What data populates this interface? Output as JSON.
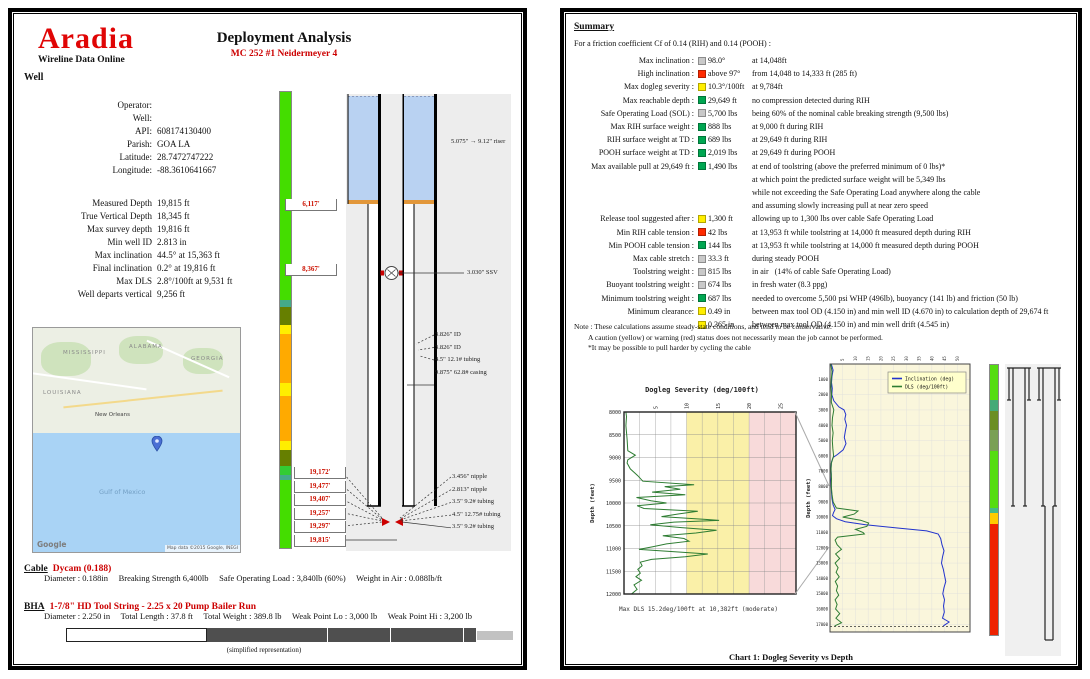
{
  "colors": {
    "accent_red": "#cc0000",
    "status_green": "#00a651",
    "status_yellow": "#ffee00",
    "status_red": "#ff2a00",
    "status_gray": "#c9c9c9"
  },
  "left_page": {
    "logo": {
      "title": "Aradia",
      "subtitle": "Wireline Data Online"
    },
    "title": "Deployment Analysis",
    "subtitle": "MC 252 #1 Neidermeyer 4",
    "well_section_label": "Well",
    "well_rows": [
      {
        "label": "Operator:",
        "value": ""
      },
      {
        "label": "Well:",
        "value": ""
      },
      {
        "label": "API:",
        "value": "608174130400"
      },
      {
        "label": "Parish:",
        "value": "GOA LA"
      },
      {
        "label": "Latitude:",
        "value": "28.7472747222"
      },
      {
        "label": "Longitude:",
        "value": "-88.3610641667"
      },
      {
        "label": "",
        "value": ""
      },
      {
        "label": "Measured Depth",
        "value": "19,815 ft"
      },
      {
        "label": "True Vertical Depth",
        "value": "18,345 ft"
      },
      {
        "label": "Max survey depth",
        "value": "19,816 ft"
      },
      {
        "label": "Min well ID",
        "value": "2.813 in"
      },
      {
        "label": "Max inclination",
        "value": "44.5° at 15,363 ft"
      },
      {
        "label": "Final inclination",
        "value": "0.2° at 19,816 ft"
      },
      {
        "label": "Max DLS",
        "value": "2.8°/100ft at 9,531 ft"
      },
      {
        "label": "Well departs vertical",
        "value": "9,256 ft"
      }
    ],
    "map": {
      "states": [
        "MISSISSIPPI",
        "ALABAMA",
        "GEORGIA",
        "LOUISIANA"
      ],
      "city": "New Orleans",
      "water_label": "Gulf of Mexico",
      "watermark": "Google",
      "attribution": "Map data ©2015 Google, INEGI"
    },
    "schematic": {
      "riser_label": "5.075\" → 9.12\" riser",
      "ssv_label": "3.030\" SSV",
      "upper_depth_boxes": [
        "6,117'",
        "8,367'"
      ],
      "mid_labels": [
        "3.826\" ID",
        "3.826\" ID",
        "4.5\" 12.1# tubing",
        "9.875\" 62.8# casing"
      ],
      "bottom_depth_boxes": [
        "19,172'",
        "19,477'",
        "19,407'",
        "19,257'",
        "19,297'",
        "19,815'"
      ],
      "bottom_labels": [
        "3.456\" nipple",
        "2.813\" nipple",
        "3.5\" 9.2# tubing",
        "4.5\" 12.75# tubing",
        "3.5\" 9.2# tubing"
      ],
      "colorbar": [
        {
          "color": "#44dd00",
          "h": 45.7
        },
        {
          "color": "#44aa88",
          "h": 1.5
        },
        {
          "color": "#667f00",
          "h": 4.0
        },
        {
          "color": "#ffee00",
          "h": 1.8
        },
        {
          "color": "#ffaa00",
          "h": 10.8
        },
        {
          "color": "#ffee00",
          "h": 2.9
        },
        {
          "color": "#ffaa00",
          "h": 9.9
        },
        {
          "color": "#ffee00",
          "h": 2.0
        },
        {
          "color": "#667f00",
          "h": 3.5
        },
        {
          "color": "#33cc33",
          "h": 2.0
        },
        {
          "color": "#44aa88",
          "h": 1.1
        },
        {
          "color": "#44dd00",
          "h": 14.8
        }
      ]
    },
    "cable": {
      "heading": "Cable",
      "name": "Dycam (0.188)",
      "details": "Diameter : 0.188in     Breaking Strength 6,400lb     Safe Operating Load : 3,840lb (60%)     Weight in Air : 0.088lb/ft"
    },
    "bha": {
      "heading": "BHA",
      "name": "1-7/8\" HD Tool String - 2.25 x 20 Pump Bailer Run",
      "details": "Diameter : 2.250 in     Total Length : 37.8 ft     Total Weight : 389.8 lb     Weak Point Lo : 3,000 lb     Weak Point Hi : 3,200 lb",
      "caption": "(simplified representation)",
      "segments": [
        {
          "w": 141,
          "style": "outline"
        },
        {
          "w": 120,
          "style": "dark"
        },
        {
          "w": 62,
          "style": "dark"
        },
        {
          "w": 72,
          "style": "dark"
        },
        {
          "w": 12,
          "style": "dark"
        },
        {
          "w": 36,
          "style": "light"
        }
      ]
    }
  },
  "right_page": {
    "heading": "Summary",
    "intro": "For a friction coefficient Cf of 0.14 (RIH) and 0.14 (POOH) :",
    "rows": [
      {
        "label": "Max inclination :",
        "chip": "gray",
        "value": "98.0°",
        "desc": "at 14,048ft"
      },
      {
        "label": "High inclination :",
        "chip": "red",
        "value": "above 97°",
        "desc": "from 14,048 to 14,333 ft (285 ft)"
      },
      {
        "label": "Max dogleg severity :",
        "chip": "yellow",
        "value": "10.3°/100ft",
        "desc": "at 9,784ft"
      },
      {
        "label": "Max reachable depth :",
        "chip": "green",
        "value": "29,649 ft",
        "desc": "no compression detected during RIH"
      },
      {
        "label": "Safe Operating Load (SOL) :",
        "chip": "gray",
        "value": "5,700 lbs",
        "desc": "being 60% of the nominal cable breaking strength (9,500 lbs)"
      },
      {
        "label": "Max RIH surface weight :",
        "chip": "green",
        "value": "888 lbs",
        "desc": "at 9,000 ft during RIH"
      },
      {
        "label": "RIH surface weight at TD :",
        "chip": "green",
        "value": "689 lbs",
        "desc": "at 29,649 ft during RIH"
      },
      {
        "label": "POOH surface weight at TD :",
        "chip": "green",
        "value": "2,019 lbs",
        "desc": "at 29,649 ft during POOH"
      },
      {
        "label": "Max available pull at 29,649 ft :",
        "chip": "green",
        "value": "1,490 lbs",
        "desc": "at end of toolstring (above the preferred minimum of 0 lbs)*",
        "extra": [
          "at which point the predicted surface weight will be 5,349 lbs",
          "while not exceeding the Safe Operating Load anywhere along the cable",
          "and assuming slowly increasing pull at near zero speed"
        ]
      },
      {
        "label": "Release tool suggested after :",
        "chip": "yellow",
        "value": "1,300 ft",
        "desc": "allowing up to 1,300 lbs over cable Safe Operating Load"
      },
      {
        "label": "Min RIH cable tension :",
        "chip": "red",
        "value": "42 lbs",
        "desc": "at 13,953 ft while toolstring at 14,000 ft measured depth during RIH"
      },
      {
        "label": "Min POOH cable tension :",
        "chip": "green",
        "value": "144 lbs",
        "desc": "at 13,953 ft while toolstring at 14,000 ft measured depth during POOH"
      },
      {
        "label": "Max cable stretch :",
        "chip": "gray",
        "value": "33.3 ft",
        "desc": "during steady POOH"
      },
      {
        "label": "Toolstring weight :",
        "chip": "gray",
        "value": "815 lbs",
        "desc": "in air   (14% of cable Safe Operating Load)"
      },
      {
        "label": "Buoyant toolstring weight :",
        "chip": "gray",
        "value": "674 lbs",
        "desc": "in fresh water (8.3 ppg)"
      },
      {
        "label": "Minimum toolstring weight :",
        "chip": "green",
        "value": "687 lbs",
        "desc": "needed to overcome 5,500 psi WHP (496lb), buoyancy (141 lb) and friction (50 lb)"
      },
      {
        "label": "Minimum clearance:",
        "chip": "yellow",
        "value": "0.49 in",
        "desc": "between max tool OD (4.150 in) and min well ID (4.670 in) to calculation depth of 29,674 ft"
      },
      {
        "label": "",
        "chip": "yellow",
        "value": "0.365 in",
        "desc": "between max tool OD (4.150 in) and min well drift (4.545 in)"
      }
    ],
    "notes": [
      "Note : These calculations assume steady-state conditions, and tend to be conservative.",
      "A caution (yellow) or warning (red) status does not necessarily mean the job cannot be performed.",
      "*It may be possible to pull harder by cycling the cable"
    ],
    "chart_caption": "Chart 1: Dogleg Severity vs Depth",
    "colorbar": [
      {
        "color": "#55dd11",
        "h": 13
      },
      {
        "color": "#44aa77",
        "h": 4
      },
      {
        "color": "#6b8e23",
        "h": 7
      },
      {
        "color": "#7aa055",
        "h": 8
      },
      {
        "color": "#55dd11",
        "h": 21
      },
      {
        "color": "#44bb88",
        "h": 2
      },
      {
        "color": "#ffcc00",
        "h": 4
      },
      {
        "color": "#ee2200",
        "h": 41
      }
    ]
  },
  "chart_data": [
    {
      "id": "dls-zoom",
      "type": "line",
      "title": "Dogleg Severity (deg/100ft)",
      "ylabel": "Depth (feet)",
      "xlim": [
        0,
        27.5
      ],
      "xticks": [
        5,
        10,
        15,
        20,
        25
      ],
      "x_minor_step": 2.5,
      "depth_range": [
        8000,
        12000
      ],
      "depth_step": 500,
      "bands": [
        {
          "from": 10,
          "to": 20,
          "color": "#faf0a8"
        },
        {
          "from": 20,
          "to": 27.5,
          "color": "#f8dada"
        }
      ],
      "series": [
        {
          "name": "DLS (deg/100ft)",
          "color": "#2e7d32",
          "depth": [
            8000,
            8100,
            8300,
            8600,
            8850,
            8950,
            9050,
            9120,
            9250,
            9400,
            9520,
            9600,
            9640,
            9700,
            9760,
            9820,
            9880,
            9950,
            10000,
            10060,
            10120,
            10180,
            10240,
            10300,
            10360,
            10382,
            10420,
            10480,
            10540,
            10600,
            10660,
            10720,
            10780,
            10840,
            10900,
            10960,
            11020,
            11080,
            11120,
            11180,
            11240,
            11300,
            11380,
            11460,
            11540,
            11620,
            11700,
            11800,
            11900,
            12000
          ],
          "values": [
            0.3,
            0.4,
            0.3,
            0.5,
            0.6,
            1.8,
            0.6,
            0.5,
            1.0,
            2.2,
            3.0,
            11.2,
            6.5,
            9.0,
            4.5,
            9.8,
            2.0,
            4.3,
            6.8,
            2.1,
            3.2,
            11.8,
            8.8,
            6.0,
            13.0,
            15.2,
            8.0,
            4.2,
            9.2,
            14.8,
            11.5,
            6.2,
            9.6,
            10.4,
            6.8,
            4.6,
            2.4,
            9.0,
            13.4,
            9.8,
            4.4,
            2.6,
            2.9,
            2.2,
            2.6,
            1.9,
            2.8,
            1.6,
            2.1,
            1.2
          ]
        }
      ],
      "caption": "Max DLS 15.2deg/100ft at 10,382ft (moderate)"
    },
    {
      "id": "overview",
      "type": "line",
      "ylabel": "Depth (feet)",
      "xlim": [
        0,
        55
      ],
      "xticks": [
        5,
        10,
        15,
        20,
        25,
        30,
        35,
        40,
        45,
        50
      ],
      "depth_range": [
        0,
        17500
      ],
      "depth_step": 1000,
      "plot_bg": "#faf6dc",
      "max_depth_line": 17150,
      "legend": [
        {
          "label": "Inclination (deg)",
          "color": "#2233cc"
        },
        {
          "label": "DLS (deg/100ft)",
          "color": "#2e7d32"
        }
      ],
      "series": [
        {
          "name": "Inclination (deg)",
          "color": "#2233cc",
          "depth": [
            0,
            400,
            800,
            1200,
            1600,
            2000,
            2400,
            2800,
            3000,
            3300,
            3600,
            4000,
            4400,
            4800,
            5200,
            5600,
            5900,
            6100,
            6400,
            6800,
            7200,
            7600,
            8000,
            8400,
            8800,
            9200,
            9500,
            9700,
            9900,
            10100,
            10300,
            10500,
            10700,
            10900,
            11100,
            11400,
            11800,
            12200,
            12600,
            13000,
            13400,
            13800,
            14200,
            14600,
            15000,
            15400,
            15800,
            16200,
            16600,
            16850,
            16950,
            17100
          ],
          "values": [
            0.5,
            1.2,
            0.8,
            0.6,
            0.9,
            0.7,
            1.5,
            3.5,
            5.5,
            6.2,
            5.8,
            6.5,
            6.0,
            5.6,
            6.3,
            5.2,
            3.0,
            1.2,
            0.6,
            0.4,
            0.5,
            0.4,
            0.5,
            0.6,
            0.8,
            1.2,
            2.0,
            1.4,
            1.0,
            2.5,
            6.0,
            14.0,
            26.0,
            38.0,
            42.5,
            43.5,
            44.0,
            44.8,
            44.2,
            43.8,
            44.5,
            45.0,
            45.5,
            44.8,
            44.3,
            45.0,
            44.6,
            44.9,
            44.2,
            46.8,
            45.9,
            44.5
          ]
        },
        {
          "name": "DLS (deg/100ft)",
          "color": "#2e7d32",
          "depth": [
            0,
            500,
            1000,
            1500,
            2000,
            2500,
            3000,
            3500,
            4000,
            4500,
            5000,
            5500,
            6000,
            6500,
            7000,
            7500,
            8000,
            8500,
            9000,
            9400,
            9600,
            9800,
            10000,
            10200,
            10382,
            10600,
            10800,
            11000,
            11100,
            11300,
            11500,
            11800,
            12100,
            12400,
            12700,
            13000,
            13300,
            13600,
            13900,
            14200,
            14500,
            14800,
            15100,
            15400,
            15700,
            16000,
            16300,
            16600,
            16900,
            17100
          ],
          "values": [
            0.3,
            0.8,
            0.5,
            0.4,
            0.6,
            0.5,
            1.5,
            1.0,
            0.8,
            1.2,
            0.9,
            1.1,
            1.4,
            0.5,
            0.4,
            0.6,
            0.5,
            0.8,
            1.2,
            2.5,
            11.0,
            9.5,
            5.0,
            12.0,
            15.2,
            14.5,
            10.0,
            13.0,
            13.5,
            3.0,
            2.0,
            2.8,
            4.5,
            2.2,
            3.8,
            2.0,
            3.2,
            2.4,
            3.6,
            2.1,
            3.0,
            2.5,
            3.4,
            2.0,
            2.8,
            2.2,
            3.8,
            2.3,
            4.5,
            1.8
          ]
        }
      ]
    }
  ]
}
